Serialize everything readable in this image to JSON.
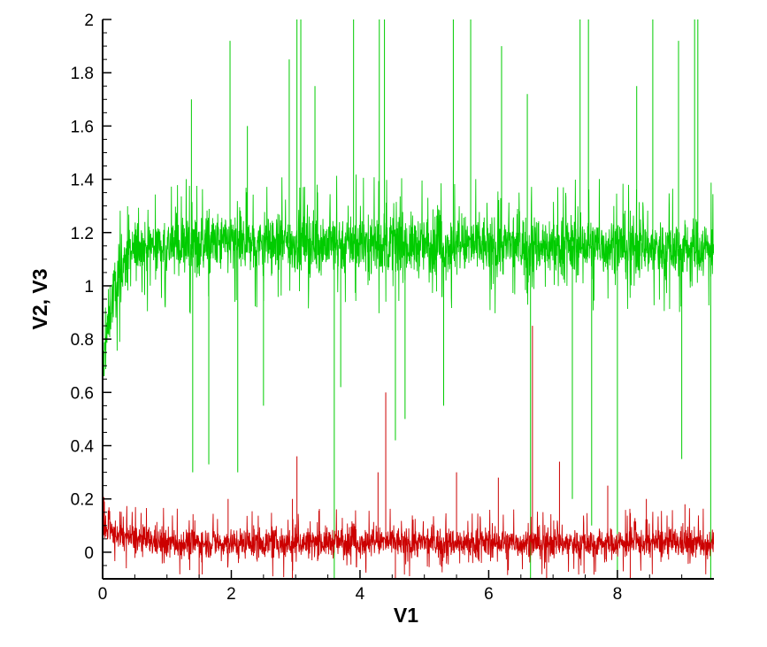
{
  "chart_data": {
    "type": "line",
    "xlabel": "V1",
    "ylabel": "V2, V3",
    "xlim": [
      0,
      9.5
    ],
    "ylim": [
      -0.1,
      2
    ],
    "x_ticks": [
      0,
      2,
      4,
      6,
      8
    ],
    "y_ticks": [
      0,
      0.2,
      0.4,
      0.6,
      0.8,
      1,
      1.2,
      1.4,
      1.6,
      1.8,
      2
    ],
    "x_tick_labels": [
      "0",
      "2",
      "4",
      "6",
      "8"
    ],
    "y_tick_labels": [
      "0",
      "0.2",
      "0.4",
      "0.6",
      "0.8",
      "1",
      "1.2",
      "1.4",
      "1.6",
      "1.8",
      "2"
    ],
    "grid": false,
    "legend": "none",
    "series": [
      {
        "color": "#00cc00",
        "description": "noisy signal rising from ~0.65 at V1=0 to a plateau mean ~1.15 by V1~0.6, band roughly 0.95-1.35, sparse spikes to 2 and dips to ~0.3",
        "x": [
          0,
          0.05,
          0.1,
          0.15,
          0.2,
          0.3,
          0.4,
          0.5,
          0.6,
          0.8,
          1,
          2,
          3,
          4,
          5,
          6,
          7,
          8,
          9,
          9.5
        ],
        "mean": [
          0.65,
          0.78,
          0.88,
          0.95,
          1.0,
          1.06,
          1.1,
          1.13,
          1.15,
          1.15,
          1.15,
          1.16,
          1.16,
          1.16,
          1.15,
          1.15,
          1.15,
          1.15,
          1.14,
          1.14
        ],
        "amplitude": 0.1,
        "peaks": [
          {
            "x": 3.02,
            "y": 2.0
          },
          {
            "x": 3.08,
            "y": 2.0
          },
          {
            "x": 3.9,
            "y": 2.0
          },
          {
            "x": 4.3,
            "y": 2.0
          },
          {
            "x": 4.38,
            "y": 2.0
          },
          {
            "x": 5.45,
            "y": 2.0
          },
          {
            "x": 5.72,
            "y": 2.0
          },
          {
            "x": 7.42,
            "y": 2.0
          },
          {
            "x": 7.55,
            "y": 2.0
          },
          {
            "x": 8.55,
            "y": 2.0
          },
          {
            "x": 9.2,
            "y": 2.0
          },
          {
            "x": 9.25,
            "y": 2.0
          },
          {
            "x": 1.98,
            "y": 1.92
          },
          {
            "x": 6.2,
            "y": 1.9
          },
          {
            "x": 8.95,
            "y": 1.92
          },
          {
            "x": 1.38,
            "y": 1.7
          },
          {
            "x": 2.25,
            "y": 1.6
          },
          {
            "x": 3.3,
            "y": 1.75
          },
          {
            "x": 6.6,
            "y": 1.72
          },
          {
            "x": 2.9,
            "y": 1.85
          },
          {
            "x": 8.3,
            "y": 1.75
          }
        ],
        "dips": [
          {
            "x": 1.4,
            "y": 0.3
          },
          {
            "x": 1.65,
            "y": 0.33
          },
          {
            "x": 2.1,
            "y": 0.3
          },
          {
            "x": 3.6,
            "y": -0.1
          },
          {
            "x": 4.55,
            "y": 0.42
          },
          {
            "x": 4.7,
            "y": 0.5
          },
          {
            "x": 6.65,
            "y": -0.1
          },
          {
            "x": 7.3,
            "y": 0.2
          },
          {
            "x": 7.6,
            "y": 0.1
          },
          {
            "x": 8.0,
            "y": -0.1
          },
          {
            "x": 9.45,
            "y": -0.1
          },
          {
            "x": 2.5,
            "y": 0.55
          },
          {
            "x": 3.7,
            "y": 0.62
          },
          {
            "x": 5.3,
            "y": 0.55
          },
          {
            "x": 9.0,
            "y": 0.35
          }
        ]
      },
      {
        "color": "#cc0000",
        "description": "noisy signal starting ~0.08 near V1=0, decaying to a mean ~0.03-0.04, band roughly -0.03 to 0.1, occasional spikes",
        "x": [
          0,
          0.2,
          0.4,
          0.6,
          0.8,
          1,
          2,
          3,
          4,
          5,
          6,
          7,
          8,
          9,
          9.5
        ],
        "mean": [
          0.08,
          0.07,
          0.055,
          0.045,
          0.04,
          0.035,
          0.035,
          0.035,
          0.04,
          0.035,
          0.035,
          0.035,
          0.035,
          0.035,
          0.035
        ],
        "amplitude": 0.05,
        "peaks": [
          {
            "x": 3.02,
            "y": 0.36
          },
          {
            "x": 4.4,
            "y": 0.6
          },
          {
            "x": 4.28,
            "y": 0.3
          },
          {
            "x": 6.68,
            "y": 0.85
          },
          {
            "x": 7.1,
            "y": 0.34
          },
          {
            "x": 5.5,
            "y": 0.3
          },
          {
            "x": 6.15,
            "y": 0.28
          },
          {
            "x": 1.95,
            "y": 0.2
          },
          {
            "x": 2.95,
            "y": 0.2
          },
          {
            "x": 7.85,
            "y": 0.25
          },
          {
            "x": 8.45,
            "y": 0.2
          },
          {
            "x": 9.05,
            "y": 0.18
          }
        ],
        "dips": [
          {
            "x": 1.5,
            "y": -0.1
          },
          {
            "x": 2.95,
            "y": -0.1
          },
          {
            "x": 4.55,
            "y": -0.1
          },
          {
            "x": 6.9,
            "y": -0.1
          },
          {
            "x": 8.2,
            "y": -0.1
          }
        ]
      }
    ]
  }
}
